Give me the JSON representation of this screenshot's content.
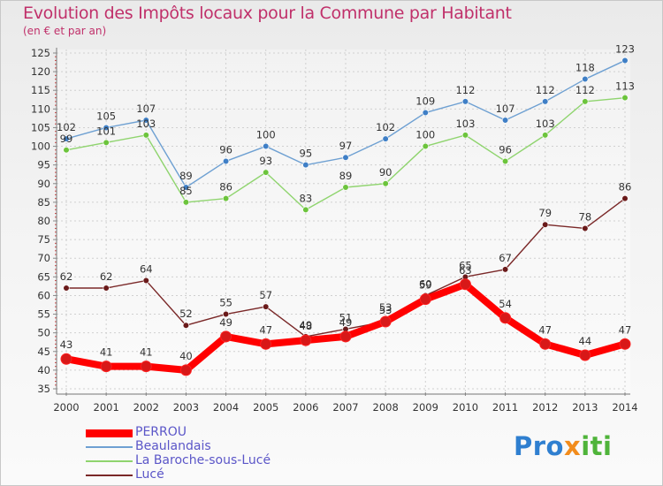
{
  "title": "Evolution des Impôts locaux pour la Commune par Habitant",
  "subtitle": "(en € et par an)",
  "brand": {
    "part1": "Pro",
    "part2": "x",
    "part3": "iti"
  },
  "chart_data": {
    "type": "line",
    "title": "Evolution des Impôts locaux pour la Commune par Habitant",
    "subtitle": "(en € et par an)",
    "x": [
      2000,
      2001,
      2002,
      2003,
      2004,
      2005,
      2006,
      2007,
      2008,
      2009,
      2010,
      2011,
      2012,
      2013,
      2014
    ],
    "ylim": [
      35,
      125
    ],
    "yticks": [
      35,
      40,
      45,
      50,
      55,
      60,
      65,
      70,
      75,
      80,
      85,
      90,
      95,
      100,
      105,
      110,
      115,
      120,
      125
    ],
    "grid": true,
    "legend_position": "bottom-left",
    "series": [
      {
        "name": "PERROU",
        "color": "#ff0000",
        "marker": "#d81818",
        "emphasis": true,
        "values": [
          43,
          41,
          41,
          40,
          49,
          47,
          48,
          49,
          53,
          59,
          63,
          54,
          47,
          44,
          47
        ]
      },
      {
        "name": "Beaulandais",
        "color": "#6ea0d2",
        "marker": "#3f7fc6",
        "values": [
          102,
          105,
          107,
          89,
          96,
          100,
          95,
          97,
          102,
          109,
          112,
          107,
          112,
          118,
          123
        ]
      },
      {
        "name": "La Baroche-sous-Lucé",
        "color": "#8fd46e",
        "marker": "#6cc43c",
        "values": [
          99,
          101,
          103,
          85,
          86,
          93,
          83,
          89,
          90,
          100,
          103,
          96,
          103,
          112,
          113
        ]
      },
      {
        "name": "Lucé",
        "color": "#7a2828",
        "marker": "#6a1a1a",
        "values": [
          62,
          62,
          64,
          52,
          55,
          57,
          49,
          51,
          53,
          60,
          65,
          67,
          79,
          78,
          86
        ]
      }
    ]
  }
}
